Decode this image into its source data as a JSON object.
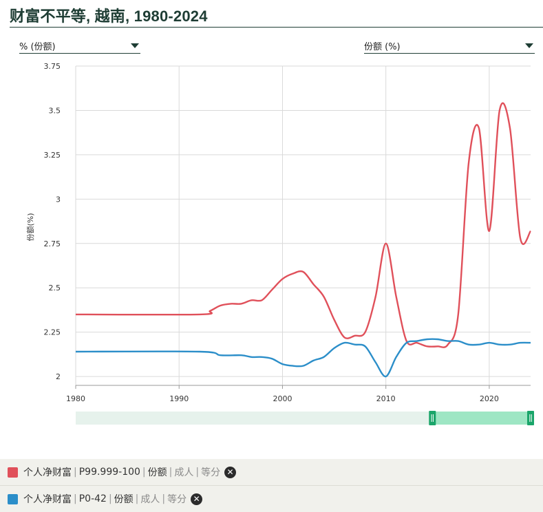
{
  "header": {
    "title": "财富不平等, 越南, 1980-2024"
  },
  "controls": {
    "unit_dropdown": "% (份额)",
    "metric_dropdown": "份额 (%)"
  },
  "legend": [
    {
      "color": "#e0505a",
      "parts": [
        "个人净财富",
        "P99.999-100",
        "份额",
        "成人",
        "等分"
      ]
    },
    {
      "color": "#2b8ec9",
      "parts": [
        "个人净财富",
        "P0-42",
        "份额",
        "成人",
        "等分"
      ]
    }
  ],
  "chart_data": {
    "type": "line",
    "ylabel": "份额(%)",
    "xlim": [
      1980,
      2024
    ],
    "ylim": [
      1.95,
      3.75
    ],
    "x_ticks": [
      1980,
      1990,
      2000,
      2010,
      2020
    ],
    "y_ticks": [
      2,
      2.25,
      2.5,
      2.75,
      3,
      3.25,
      3.5,
      3.75
    ],
    "y_tick_labels": [
      "2",
      "2.25",
      "2.5",
      "2.75",
      "3",
      "3.25",
      "3.5",
      "3.75"
    ],
    "grid": true,
    "range_slider": {
      "full": [
        1980,
        2024
      ],
      "selected": [
        2014.5,
        2024
      ]
    },
    "series": [
      {
        "name": "个人净财富 | P99.999-100 | 份额 | 成人 | 等分",
        "color": "#e0505a",
        "points": [
          [
            1980,
            2.35
          ],
          [
            1992,
            2.35
          ],
          [
            1993,
            2.37
          ],
          [
            1994,
            2.4
          ],
          [
            1995,
            2.41
          ],
          [
            1996,
            2.41
          ],
          [
            1997,
            2.43
          ],
          [
            1998,
            2.43
          ],
          [
            1999,
            2.49
          ],
          [
            2000,
            2.55
          ],
          [
            2001,
            2.58
          ],
          [
            2002,
            2.59
          ],
          [
            2003,
            2.52
          ],
          [
            2004,
            2.45
          ],
          [
            2005,
            2.32
          ],
          [
            2006,
            2.22
          ],
          [
            2007,
            2.23
          ],
          [
            2008,
            2.25
          ],
          [
            2009,
            2.45
          ],
          [
            2010,
            2.75
          ],
          [
            2011,
            2.45
          ],
          [
            2012,
            2.2
          ],
          [
            2013,
            2.19
          ],
          [
            2014,
            2.17
          ],
          [
            2015,
            2.17
          ],
          [
            2016,
            2.18
          ],
          [
            2017,
            2.35
          ],
          [
            2018,
            3.2
          ],
          [
            2019,
            3.4
          ],
          [
            2020,
            2.82
          ],
          [
            2021,
            3.5
          ],
          [
            2022,
            3.4
          ],
          [
            2023,
            2.78
          ],
          [
            2024,
            2.82
          ]
        ]
      },
      {
        "name": "个人净财富 | P0-42 | 份额 | 成人 | 等分",
        "color": "#2b8ec9",
        "points": [
          [
            1980,
            2.14
          ],
          [
            1992,
            2.14
          ],
          [
            1994,
            2.12
          ],
          [
            1996,
            2.12
          ],
          [
            1997,
            2.11
          ],
          [
            1998,
            2.11
          ],
          [
            1999,
            2.1
          ],
          [
            2000,
            2.07
          ],
          [
            2001,
            2.06
          ],
          [
            2002,
            2.06
          ],
          [
            2003,
            2.09
          ],
          [
            2004,
            2.11
          ],
          [
            2005,
            2.16
          ],
          [
            2006,
            2.19
          ],
          [
            2007,
            2.18
          ],
          [
            2008,
            2.17
          ],
          [
            2009,
            2.08
          ],
          [
            2010,
            2.0
          ],
          [
            2011,
            2.11
          ],
          [
            2012,
            2.19
          ],
          [
            2013,
            2.2
          ],
          [
            2014,
            2.21
          ],
          [
            2015,
            2.21
          ],
          [
            2016,
            2.2
          ],
          [
            2017,
            2.2
          ],
          [
            2018,
            2.18
          ],
          [
            2019,
            2.18
          ],
          [
            2020,
            2.19
          ],
          [
            2021,
            2.18
          ],
          [
            2022,
            2.18
          ],
          [
            2023,
            2.19
          ],
          [
            2024,
            2.19
          ]
        ]
      }
    ]
  }
}
